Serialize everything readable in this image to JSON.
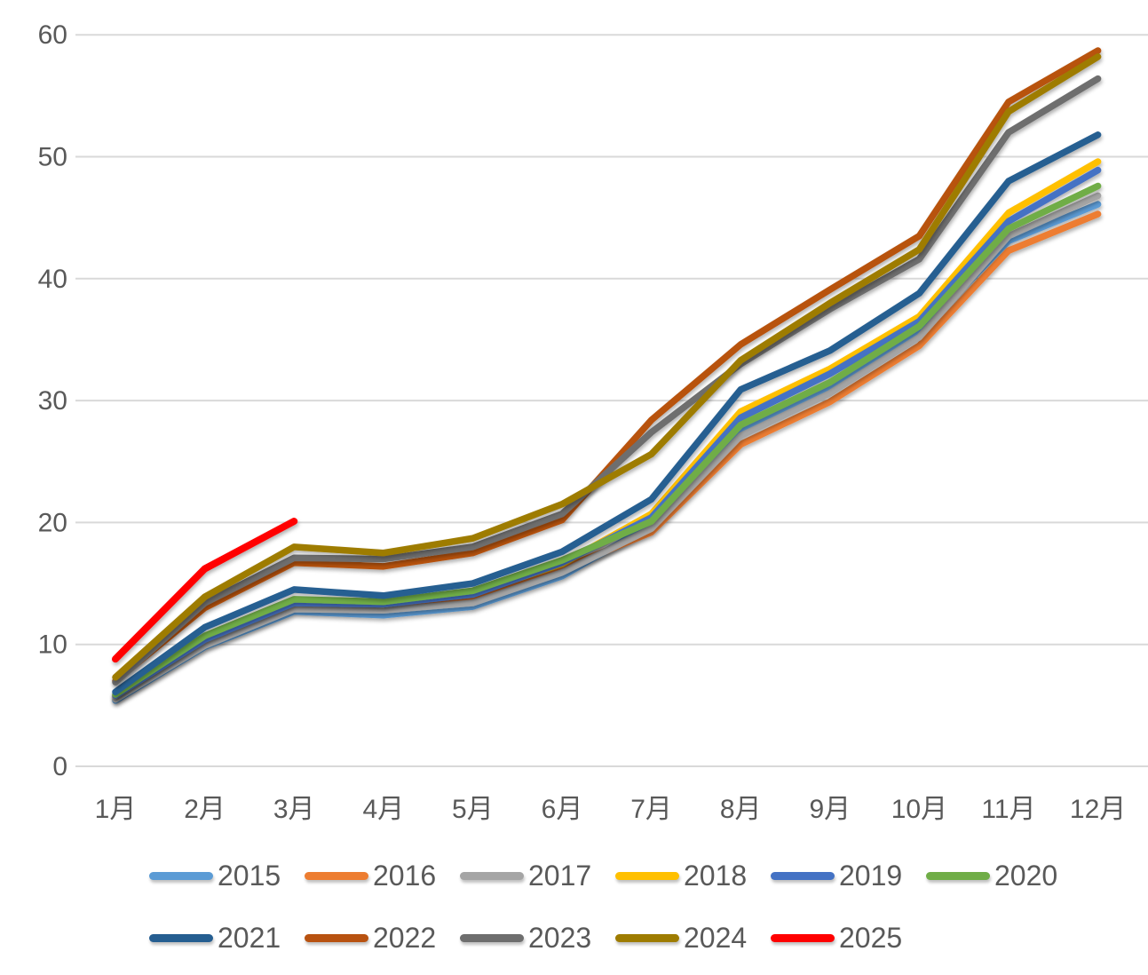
{
  "chart_data": {
    "type": "line",
    "title": "",
    "xlabel": "",
    "ylabel": "",
    "categories": [
      "1月",
      "2月",
      "3月",
      "4月",
      "5月",
      "6月",
      "7月",
      "8月",
      "9月",
      "10月",
      "11月",
      "12月"
    ],
    "yticks": [
      0,
      10,
      20,
      30,
      40,
      50,
      60
    ],
    "ylim": [
      0,
      60
    ],
    "grid": true,
    "legend_position": "bottom",
    "axis_text_color": "#595959",
    "gridline_color": "#d9d9d9",
    "series": [
      {
        "name": "2015",
        "color": "#5B9BD5",
        "values": [
          5.4,
          9.8,
          12.7,
          12.4,
          13.1,
          15.6,
          19.8,
          27.5,
          31.1,
          35.6,
          43.1,
          46.1
        ]
      },
      {
        "name": "2016",
        "color": "#ED7D31",
        "values": [
          5.7,
          10.3,
          13.3,
          13.2,
          13.9,
          16.2,
          19.2,
          26.4,
          29.9,
          34.5,
          42.3,
          45.3
        ]
      },
      {
        "name": "2017",
        "color": "#A5A5A5",
        "values": [
          5.5,
          9.9,
          12.9,
          12.8,
          13.4,
          15.9,
          19.5,
          27.1,
          30.6,
          35.2,
          43.5,
          46.8
        ]
      },
      {
        "name": "2018",
        "color": "#FFC000",
        "values": [
          5.8,
          10.5,
          13.5,
          13.3,
          14.2,
          16.6,
          20.7,
          29.1,
          32.6,
          36.9,
          45.4,
          49.6
        ]
      },
      {
        "name": "2019",
        "color": "#4472C4",
        "values": [
          5.8,
          10.4,
          13.4,
          13.3,
          14.1,
          16.7,
          20.4,
          28.6,
          32.2,
          36.5,
          44.7,
          48.9
        ]
      },
      {
        "name": "2020",
        "color": "#70AD47",
        "values": [
          5.9,
          10.7,
          13.7,
          13.5,
          14.4,
          16.9,
          20.1,
          28.0,
          31.5,
          36.1,
          44.1,
          47.6
        ]
      },
      {
        "name": "2021",
        "color": "#255E91",
        "values": [
          6.1,
          11.4,
          14.5,
          14.0,
          15.0,
          17.6,
          21.9,
          30.9,
          34.1,
          38.8,
          48.0,
          51.8
        ]
      },
      {
        "name": "2022",
        "color": "#B85210",
        "values": [
          7.0,
          13.0,
          16.7,
          16.4,
          17.5,
          20.2,
          28.4,
          34.6,
          39.1,
          43.5,
          54.5,
          58.7
        ]
      },
      {
        "name": "2023",
        "color": "#6E6E6E",
        "values": [
          6.9,
          13.4,
          17.1,
          17.0,
          18.0,
          20.7,
          27.4,
          33.0,
          37.5,
          41.6,
          52.0,
          56.4
        ]
      },
      {
        "name": "2024",
        "color": "#9E7C00",
        "values": [
          7.3,
          13.9,
          18.0,
          17.5,
          18.7,
          21.5,
          25.6,
          33.3,
          38.0,
          42.4,
          53.7,
          58.2
        ]
      },
      {
        "name": "2025",
        "color": "#FF0000",
        "values": [
          8.8,
          16.2,
          20.1
        ]
      }
    ]
  }
}
